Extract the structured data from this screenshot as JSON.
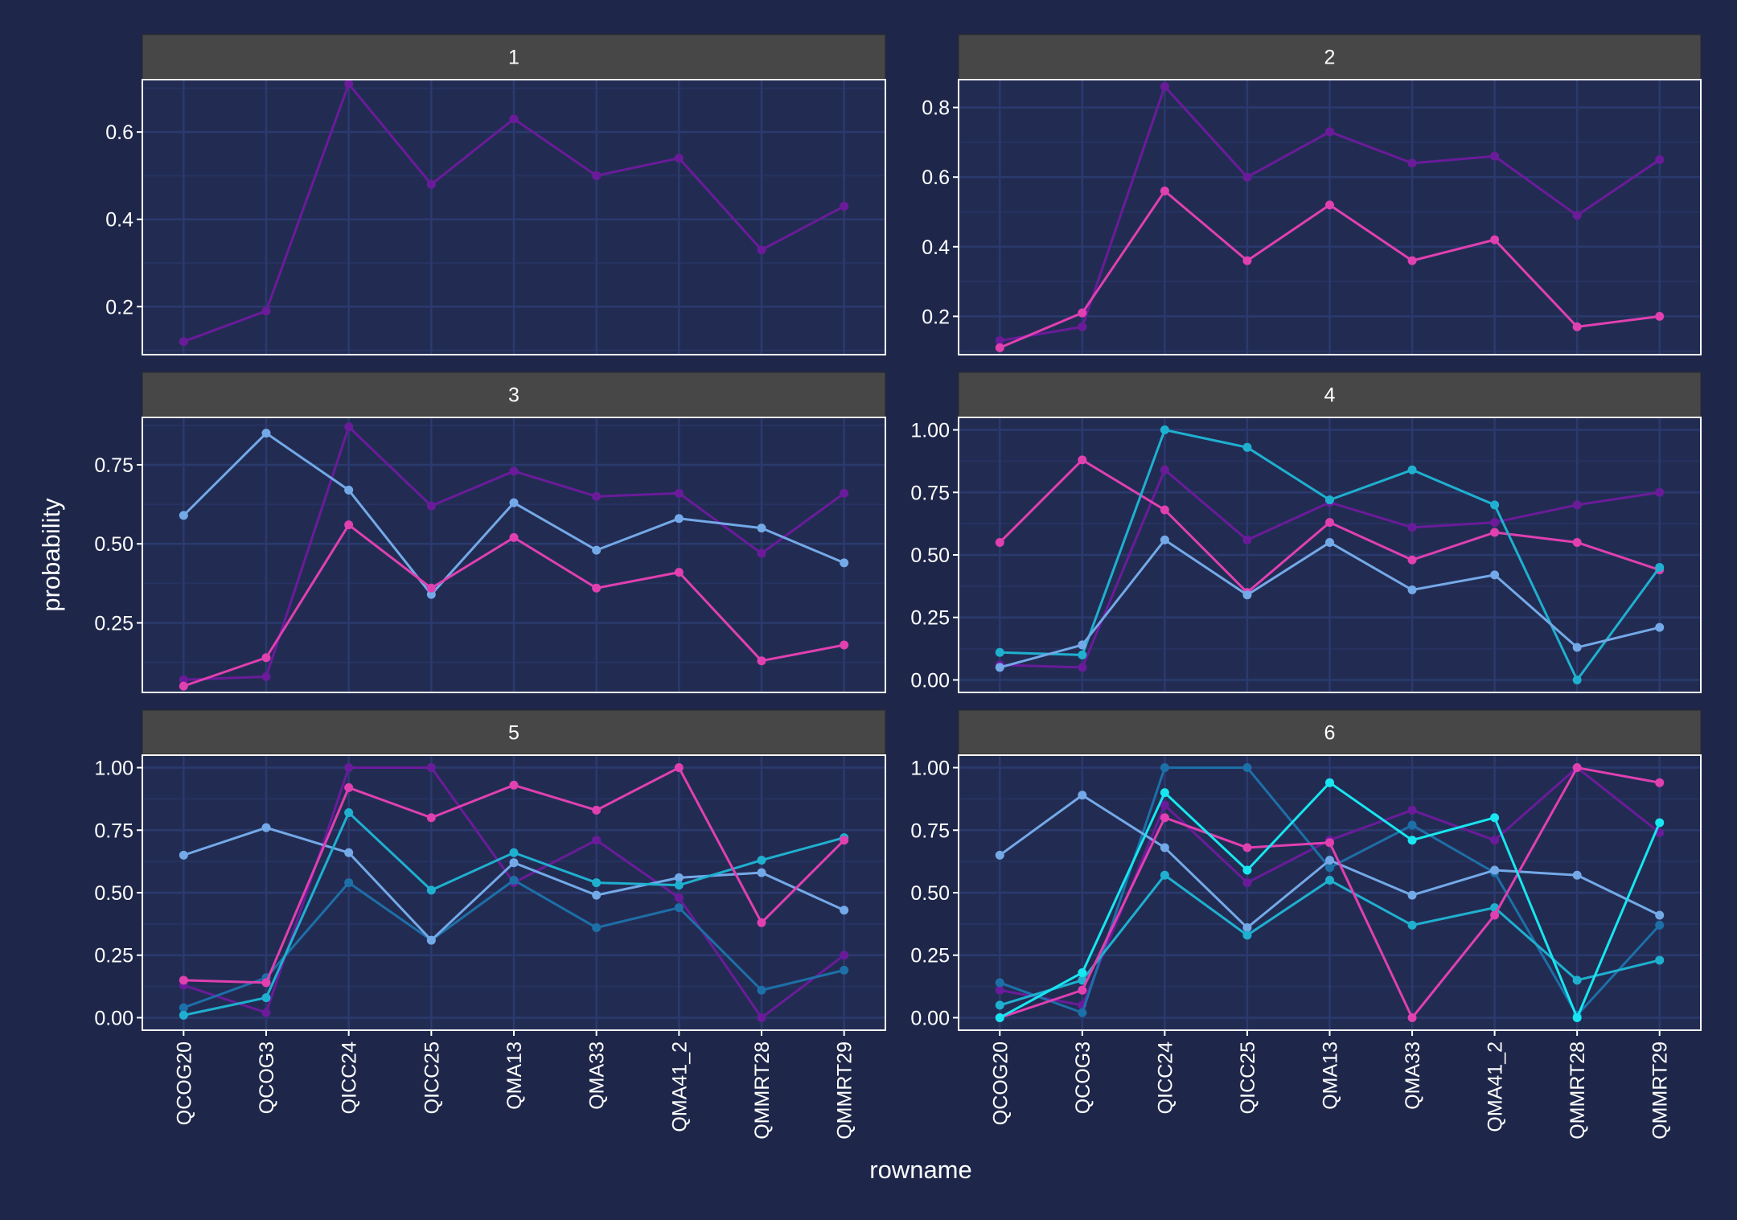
{
  "colors": {
    "background": "#1e274a",
    "panel": "#222c52",
    "grid_major": "#2b3a6e",
    "grid_minor": "#27335f",
    "strip": "#474747",
    "text": "#ffffff",
    "series": [
      "#6a1b9a",
      "#e040b0",
      "#74a9e8",
      "#1fb0d0",
      "#1d6fa8",
      "#18e6f0"
    ]
  },
  "chart_data": {
    "type": "line",
    "xlabel": "rowname",
    "ylabel": "probability",
    "categories": [
      "QCOG20",
      "QCOG3",
      "QICC24",
      "QICC25",
      "QMA13",
      "QMA33",
      "QMA41_2",
      "QMMRT28",
      "QMMRT29"
    ],
    "panels": [
      {
        "label": "1",
        "ylim": [
          0.09,
          0.72
        ],
        "yticks": [
          "0.2",
          "0.4",
          "0.6"
        ],
        "ytick_values": [
          0.2,
          0.4,
          0.6
        ],
        "series": [
          {
            "color_index": 0,
            "values": [
              0.12,
              0.19,
              0.71,
              0.48,
              0.63,
              0.5,
              0.54,
              0.33,
              0.43
            ]
          }
        ]
      },
      {
        "label": "2",
        "ylim": [
          0.09,
          0.88
        ],
        "yticks": [
          "0.2",
          "0.4",
          "0.6",
          "0.8"
        ],
        "ytick_values": [
          0.2,
          0.4,
          0.6,
          0.8
        ],
        "series": [
          {
            "color_index": 0,
            "values": [
              0.13,
              0.17,
              0.86,
              0.6,
              0.73,
              0.64,
              0.66,
              0.49,
              0.65
            ]
          },
          {
            "color_index": 1,
            "values": [
              0.11,
              0.21,
              0.56,
              0.36,
              0.52,
              0.36,
              0.42,
              0.17,
              0.2
            ]
          }
        ]
      },
      {
        "label": "3",
        "ylim": [
          0.03,
          0.9
        ],
        "yticks": [
          "0.25",
          "0.50",
          "0.75"
        ],
        "ytick_values": [
          0.25,
          0.5,
          0.75
        ],
        "series": [
          {
            "color_index": 0,
            "values": [
              0.07,
              0.08,
              0.87,
              0.62,
              0.73,
              0.65,
              0.66,
              0.47,
              0.66
            ]
          },
          {
            "color_index": 2,
            "values": [
              0.59,
              0.85,
              0.67,
              0.34,
              0.63,
              0.48,
              0.58,
              0.55,
              0.44
            ]
          },
          {
            "color_index": 1,
            "values": [
              0.05,
              0.14,
              0.56,
              0.36,
              0.52,
              0.36,
              0.41,
              0.13,
              0.18
            ]
          }
        ]
      },
      {
        "label": "4",
        "ylim": [
          -0.05,
          1.05
        ],
        "yticks": [
          "0.00",
          "0.25",
          "0.50",
          "0.75",
          "1.00"
        ],
        "ytick_values": [
          0,
          0.25,
          0.5,
          0.75,
          1.0
        ],
        "series": [
          {
            "color_index": 0,
            "values": [
              0.06,
              0.05,
              0.84,
              0.56,
              0.71,
              0.61,
              0.63,
              0.7,
              0.75
            ]
          },
          {
            "color_index": 1,
            "values": [
              0.55,
              0.88,
              0.68,
              0.35,
              0.63,
              0.48,
              0.59,
              0.55,
              0.44
            ]
          },
          {
            "color_index": 3,
            "values": [
              0.11,
              0.1,
              1.0,
              0.93,
              0.72,
              0.84,
              0.7,
              0.0,
              0.45
            ]
          },
          {
            "color_index": 2,
            "values": [
              0.05,
              0.14,
              0.56,
              0.34,
              0.55,
              0.36,
              0.42,
              0.13,
              0.21
            ]
          }
        ]
      },
      {
        "label": "5",
        "ylim": [
          -0.05,
          1.05
        ],
        "yticks": [
          "0.00",
          "0.25",
          "0.50",
          "0.75",
          "1.00"
        ],
        "ytick_values": [
          0,
          0.25,
          0.5,
          0.75,
          1.0
        ],
        "series": [
          {
            "color_index": 0,
            "values": [
              0.13,
              0.02,
              1.0,
              1.0,
              0.54,
              0.71,
              0.48,
              0.0,
              0.25
            ]
          },
          {
            "color_index": 4,
            "values": [
              0.04,
              0.16,
              0.54,
              0.31,
              0.55,
              0.36,
              0.44,
              0.11,
              0.19
            ]
          },
          {
            "color_index": 2,
            "values": [
              0.65,
              0.76,
              0.66,
              0.31,
              0.62,
              0.49,
              0.56,
              0.58,
              0.43
            ]
          },
          {
            "color_index": 3,
            "values": [
              0.01,
              0.08,
              0.82,
              0.51,
              0.66,
              0.54,
              0.53,
              0.63,
              0.72
            ]
          },
          {
            "color_index": 1,
            "values": [
              0.15,
              0.14,
              0.92,
              0.8,
              0.93,
              0.83,
              1.0,
              0.38,
              0.71
            ]
          }
        ]
      },
      {
        "label": "6",
        "ylim": [
          -0.05,
          1.05
        ],
        "yticks": [
          "0.00",
          "0.25",
          "0.50",
          "0.75",
          "1.00"
        ],
        "ytick_values": [
          0,
          0.25,
          0.5,
          0.75,
          1.0
        ],
        "series": [
          {
            "color_index": 0,
            "values": [
              0.11,
              0.05,
              0.85,
              0.54,
              0.71,
              0.83,
              0.71,
              1.0,
              0.74
            ]
          },
          {
            "color_index": 4,
            "values": [
              0.14,
              0.02,
              1.0,
              1.0,
              0.6,
              0.77,
              0.58,
              0.01,
              0.37
            ]
          },
          {
            "color_index": 2,
            "values": [
              0.65,
              0.89,
              0.68,
              0.36,
              0.63,
              0.49,
              0.59,
              0.57,
              0.41
            ]
          },
          {
            "color_index": 3,
            "values": [
              0.05,
              0.15,
              0.57,
              0.33,
              0.55,
              0.37,
              0.44,
              0.15,
              0.23
            ]
          },
          {
            "color_index": 1,
            "values": [
              0.0,
              0.11,
              0.8,
              0.68,
              0.7,
              0.0,
              0.41,
              1.0,
              0.94
            ]
          },
          {
            "color_index": 5,
            "values": [
              0.0,
              0.18,
              0.9,
              0.59,
              0.94,
              0.71,
              0.8,
              0.0,
              0.78
            ]
          }
        ]
      }
    ]
  }
}
